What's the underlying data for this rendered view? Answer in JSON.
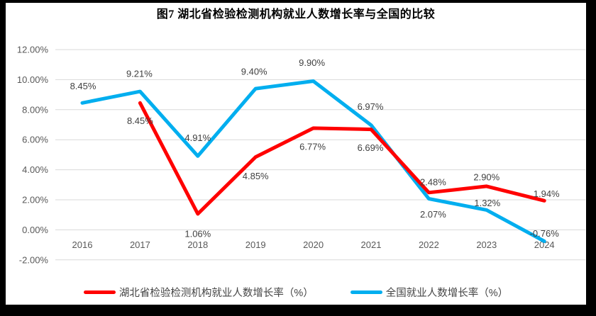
{
  "chart_data": {
    "type": "line",
    "title": "图7 湖北省检验检测机构就业人数增长率与全国的比较",
    "categories": [
      "2016",
      "2017",
      "2018",
      "2019",
      "2020",
      "2021",
      "2022",
      "2023",
      "2024"
    ],
    "xlabel": "",
    "ylabel": "",
    "ylim": [
      -2,
      12
    ],
    "grid": true,
    "legend_position": "bottom",
    "y_axis": {
      "min": -2,
      "max": 12,
      "step": 2,
      "tick_values": [
        12,
        10,
        8,
        6,
        4,
        2,
        0,
        -2
      ],
      "tick_labels": [
        "12.00%",
        "10.00%",
        "8.00%",
        "6.00%",
        "4.00%",
        "2.00%",
        "0.00%",
        "-2.00%"
      ]
    },
    "colors": {
      "gridline": "#D9D9D9",
      "tick_text": "#595959",
      "data_label_text": "#404040",
      "frame": "#000000",
      "background": "#FFFFFF"
    },
    "series": [
      {
        "id": "hubei",
        "name": "湖北省检验检测机构就业人数增长率（%）",
        "color": "#FF0000",
        "values": [
          null,
          8.45,
          1.06,
          4.85,
          6.77,
          6.69,
          2.48,
          2.9,
          1.94
        ],
        "labels": [
          null,
          "8.45%",
          "1.06%",
          "4.85%",
          "6.77%",
          "6.69%",
          "2.48%",
          "2.90%",
          "1.94%"
        ],
        "label_offsets": [
          null,
          [
            0,
            25
          ],
          [
            0,
            28
          ],
          [
            0,
            27
          ],
          [
            -1,
            26
          ],
          [
            -1,
            26
          ],
          [
            6,
            -15
          ],
          [
            0,
            -13
          ],
          [
            3,
            -10
          ]
        ]
      },
      {
        "id": "national",
        "name": "全国就业人数增长率（%）",
        "color": "#00AEEF",
        "values": [
          8.45,
          9.21,
          4.91,
          9.4,
          9.9,
          6.97,
          2.07,
          1.32,
          -0.76
        ],
        "labels": [
          "8.45%",
          "9.21%",
          "4.91%",
          "9.40%",
          "9.90%",
          "6.97%",
          "2.07%",
          "1.32%",
          "-0.76%"
        ],
        "label_offsets": [
          [
            1,
            -24
          ],
          [
            -1,
            -25
          ],
          [
            0,
            -26
          ],
          [
            -2,
            -24
          ],
          [
            -2,
            -26
          ],
          [
            -1,
            -26
          ],
          [
            6,
            22
          ],
          [
            1,
            -10
          ],
          [
            0,
            -11
          ]
        ]
      }
    ]
  }
}
